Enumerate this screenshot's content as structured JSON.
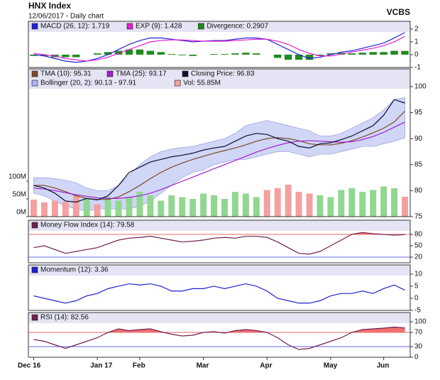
{
  "chart_data": {
    "type": "financial",
    "title": "HNX Index",
    "subtitle": "12/06/2017 - Daily chart",
    "source": "VCBS",
    "categories": [
      "Dec 16",
      null,
      null,
      null,
      null,
      null,
      "Jan 17",
      null,
      null,
      null,
      "Feb",
      null,
      null,
      null,
      null,
      null,
      "Mar",
      null,
      null,
      null,
      null,
      null,
      "Apr",
      null,
      null,
      null,
      null,
      null,
      "May",
      null,
      null,
      null,
      null,
      "Jun",
      null,
      null
    ],
    "panels": [
      {
        "type": "macd",
        "ylim": [
          -1,
          2.6
        ],
        "yticks": [
          -1,
          0,
          1,
          2
        ],
        "series": [
          {
            "name": "MACD (26, 12): 1.719",
            "kind": "line",
            "color": "#2323d0",
            "values": [
              0,
              -0.1,
              -0.3,
              -0.5,
              -0.6,
              -0.5,
              -0.3,
              0,
              0.4,
              0.8,
              1.1,
              1.3,
              1.3,
              1.2,
              1.1,
              1.0,
              1.05,
              1.1,
              1.1,
              1.2,
              1.3,
              1.3,
              1.2,
              0.8,
              0.4,
              0,
              -0.3,
              -0.2,
              0,
              0.2,
              0.3,
              0.5,
              0.7,
              0.9,
              1.3,
              1.72
            ]
          },
          {
            "name": "EXP (9): 1.428",
            "kind": "line",
            "color": "#e020d0",
            "values": [
              0.1,
              0,
              -0.1,
              -0.3,
              -0.4,
              -0.5,
              -0.4,
              -0.2,
              0.1,
              0.4,
              0.7,
              1.0,
              1.1,
              1.15,
              1.15,
              1.1,
              1.05,
              1.05,
              1.05,
              1.1,
              1.15,
              1.2,
              1.2,
              1.05,
              0.8,
              0.4,
              0.1,
              -0.1,
              -0.1,
              0.05,
              0.2,
              0.35,
              0.5,
              0.7,
              1.0,
              1.43
            ]
          },
          {
            "name": "Divergence: 0.2907",
            "kind": "bar",
            "color": "#1f8a1f",
            "values": [
              -0.1,
              -0.1,
              -0.2,
              -0.2,
              -0.2,
              0,
              0.1,
              0.2,
              0.3,
              0.4,
              0.4,
              0.3,
              0.2,
              0.05,
              -0.05,
              -0.1,
              0,
              0.05,
              0.05,
              0.1,
              0.15,
              0.1,
              0,
              -0.25,
              -0.4,
              -0.4,
              -0.4,
              -0.1,
              0.1,
              0.15,
              0.1,
              0.15,
              0.2,
              0.2,
              0.3,
              0.29
            ]
          }
        ]
      },
      {
        "type": "price",
        "ylim": [
          75,
          103.4
        ],
        "yticks": [
          75,
          80,
          85,
          90,
          95,
          100
        ],
        "y2lim": [
          0,
          416
        ],
        "y2ticks": [
          {
            "value": 0,
            "label": "0M"
          },
          {
            "value": 50,
            "label": "50M"
          },
          {
            "value": 100,
            "label": "100M"
          }
        ],
        "series": [
          {
            "name": "TMA (10): 95.31",
            "kind": "line",
            "color": "#7a4a2a",
            "values": [
              81,
              81,
              80.5,
              79.8,
              79,
              78.5,
              78.3,
              78.3,
              78.8,
              79.8,
              81,
              82.3,
              83.5,
              84.5,
              85.3,
              86,
              86.6,
              87.2,
              87.7,
              88.2,
              88.8,
              89.5,
              90,
              90.2,
              90,
              89.6,
              89,
              88.8,
              88.8,
              89.1,
              89.6,
              90.3,
              91.1,
              92,
              93.2,
              95.3
            ]
          },
          {
            "name": "TMA (25): 93.17",
            "kind": "line",
            "color": "#a020d0",
            "values": [
              80.5,
              80.3,
              80,
              79.6,
              79.2,
              78.9,
              78.6,
              78.5,
              78.5,
              78.7,
              79,
              79.5,
              80.2,
              81,
              81.8,
              82.6,
              83.4,
              84.2,
              85,
              85.8,
              86.6,
              87.4,
              88.1,
              88.7,
              89.2,
              89.5,
              89.6,
              89.5,
              89.4,
              89.3,
              89.4,
              89.8,
              90.4,
              91.2,
              92.2,
              93.17
            ]
          },
          {
            "name": "Closing Price: 96.83",
            "kind": "line",
            "color": "#101030",
            "values": [
              81,
              80.5,
              79.5,
              78,
              77.8,
              78.5,
              78.2,
              79,
              81,
              83.5,
              84.5,
              85.5,
              86,
              86.5,
              86.8,
              87.2,
              87.8,
              88.2,
              88.5,
              89.5,
              90.5,
              91,
              90.8,
              90,
              89.5,
              88.5,
              88.2,
              89,
              89.2,
              89.8,
              90.5,
              91.5,
              92.5,
              94.5,
              97.5,
              96.83
            ]
          },
          {
            "name": "Bollinger (20, 2): 90.13 - 97.91",
            "kind": "band",
            "color": "#aab4ee",
            "upper": [
              82.5,
              82.5,
              82.3,
              82,
              81.5,
              80.5,
              80,
              80,
              81,
              83,
              85,
              86.5,
              87.5,
              88,
              88.3,
              88.5,
              89,
              89.5,
              90,
              91,
              92.5,
              93,
              93.5,
              93,
              92.5,
              92,
              91.5,
              90.5,
              90.5,
              91,
              92,
              93,
              94,
              95.5,
              97.5,
              97.91
            ],
            "lower": [
              79.5,
              79,
              78,
              77,
              76.5,
              76,
              76.5,
              76.5,
              76.5,
              76.5,
              77,
              78,
              79.5,
              81,
              82.5,
              83.5,
              84,
              85,
              85.5,
              86,
              86,
              86.5,
              87,
              87.5,
              87.5,
              87,
              86.5,
              87,
              87,
              87.5,
              88,
              88.5,
              88.5,
              89,
              89.5,
              90.13
            ]
          },
          {
            "name": "Vol: 55.85M",
            "kind": "bar",
            "axis": "y2",
            "color": "#f4a0a0",
            "up_color": "#90d890",
            "values": [
              48,
              40,
              45,
              42,
              60,
              50,
              35,
              55,
              45,
              55,
              70,
              60,
              45,
              60,
              55,
              50,
              65,
              60,
              50,
              70,
              65,
              55,
              75,
              80,
              90,
              70,
              65,
              60,
              55,
              75,
              80,
              70,
              75,
              85,
              80,
              55.85
            ]
          }
        ]
      },
      {
        "type": "oscillator",
        "ylim": [
          5,
          117.5
        ],
        "yticks": [
          20,
          50,
          80
        ],
        "levels": [
          {
            "value": 80,
            "color": "#e03030"
          },
          {
            "value": 20,
            "color": "#3030e0"
          }
        ],
        "fill_above": 80,
        "fill_color": "#f07070",
        "series": [
          {
            "name": "Money Flow Index (14): 79.58",
            "kind": "line",
            "color": "#702050",
            "values": [
              45,
              50,
              40,
              30,
              35,
              40,
              45,
              55,
              65,
              70,
              72,
              75,
              70,
              65,
              60,
              62,
              65,
              70,
              72,
              70,
              75,
              75,
              72,
              60,
              45,
              30,
              28,
              35,
              50,
              65,
              80,
              85,
              82,
              80,
              78,
              79.58
            ]
          }
        ]
      },
      {
        "type": "oscillator",
        "ylim": [
          -5,
          13.8
        ],
        "yticks": [
          -5,
          0,
          5,
          10
        ],
        "series": [
          {
            "name": "Momentum (12): 3.36",
            "kind": "line",
            "color": "#2020d0",
            "values": [
              1,
              0,
              -1,
              -2,
              -1,
              1,
              2,
              4,
              5,
              6,
              5.5,
              6,
              5,
              3,
              3,
              4,
              4,
              5,
              4,
              5,
              6,
              5,
              3,
              0,
              -1,
              -2,
              -2,
              -1,
              1,
              2,
              2,
              3,
              2,
              4,
              5.5,
              3.36
            ]
          }
        ]
      },
      {
        "type": "oscillator",
        "ylim": [
          0,
          126
        ],
        "yticks": [
          0,
          30,
          70,
          100
        ],
        "levels": [
          {
            "value": 70,
            "color": "#e03030"
          },
          {
            "value": 30,
            "color": "#3030e0"
          }
        ],
        "fill_above": 70,
        "fill_color": "#f07070",
        "series": [
          {
            "name": "RSI (14): 82.56",
            "kind": "line",
            "color": "#702050",
            "values": [
              50,
              45,
              35,
              25,
              35,
              45,
              55,
              70,
              80,
              75,
              78,
              80,
              72,
              65,
              60,
              62,
              70,
              72,
              68,
              75,
              78,
              75,
              70,
              55,
              35,
              22,
              25,
              35,
              45,
              55,
              70,
              78,
              80,
              82,
              85,
              82.56
            ]
          }
        ]
      }
    ]
  }
}
